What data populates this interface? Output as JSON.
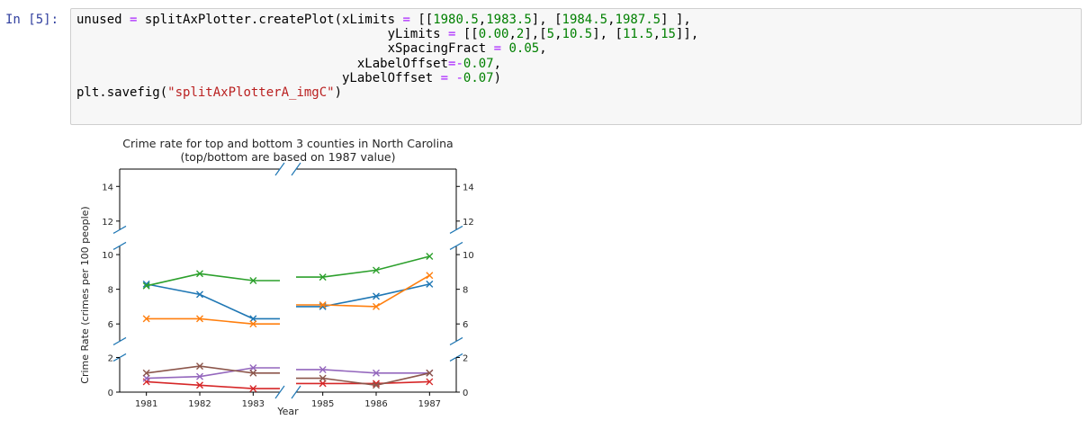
{
  "cell": {
    "prompt": "In [5]:",
    "code_lines": [
      [
        {
          "t": "unused "
        },
        {
          "t": "=",
          "c": "op"
        },
        {
          "t": " splitAxPlotter.createPlot(xLimits "
        },
        {
          "t": "=",
          "c": "op"
        },
        {
          "t": " [["
        },
        {
          "t": "1980.5",
          "c": "num"
        },
        {
          "t": ","
        },
        {
          "t": "1983.5",
          "c": "num"
        },
        {
          "t": "], ["
        },
        {
          "t": "1984.5",
          "c": "num"
        },
        {
          "t": ","
        },
        {
          "t": "1987.5",
          "c": "num"
        },
        {
          "t": "] ],"
        }
      ],
      [
        {
          "t": "                                         yLimits "
        },
        {
          "t": "=",
          "c": "op"
        },
        {
          "t": " [["
        },
        {
          "t": "0.00",
          "c": "num"
        },
        {
          "t": ","
        },
        {
          "t": "2",
          "c": "num"
        },
        {
          "t": "],["
        },
        {
          "t": "5",
          "c": "num"
        },
        {
          "t": ","
        },
        {
          "t": "10.5",
          "c": "num"
        },
        {
          "t": "], ["
        },
        {
          "t": "11.5",
          "c": "num"
        },
        {
          "t": ","
        },
        {
          "t": "15",
          "c": "num"
        },
        {
          "t": "]],"
        }
      ],
      [
        {
          "t": "                                         xSpacingFract "
        },
        {
          "t": "=",
          "c": "op"
        },
        {
          "t": " "
        },
        {
          "t": "0.05",
          "c": "num"
        },
        {
          "t": ","
        }
      ],
      [
        {
          "t": "                                     xLabelOffset"
        },
        {
          "t": "=-",
          "c": "op"
        },
        {
          "t": "0.07",
          "c": "num"
        },
        {
          "t": ","
        }
      ],
      [
        {
          "t": "                                   yLabelOffset "
        },
        {
          "t": "=",
          "c": "op"
        },
        {
          "t": " "
        },
        {
          "t": "-",
          "c": "op"
        },
        {
          "t": "0.07",
          "c": "num"
        },
        {
          "t": ")"
        }
      ],
      [
        {
          "t": "plt.savefig("
        },
        {
          "t": "\"splitAxPlotterA_imgC\"",
          "c": "str"
        },
        {
          "t": ")"
        }
      ]
    ]
  },
  "chart_data": {
    "type": "line",
    "title": "Crime rate for top and bottom 3 counties in North Carolina",
    "subtitle": "(top/bottom are based on 1987 value)",
    "xlabel": "Year",
    "ylabel": "Crime Rate (crimes per 100 people)",
    "x": [
      1981,
      1982,
      1983,
      1985,
      1986,
      1987
    ],
    "x_segments": [
      [
        1980.5,
        1983.5
      ],
      [
        1984.5,
        1987.5
      ]
    ],
    "y_segments": [
      [
        0,
        2
      ],
      [
        5,
        10.5
      ],
      [
        11.5,
        15
      ]
    ],
    "x_ticks": [
      "1981",
      "1982",
      "1983",
      "1985",
      "1986",
      "1987"
    ],
    "y_ticks": [
      "0",
      "2",
      "6",
      "8",
      "10",
      "12",
      "14"
    ],
    "series": [
      {
        "color": "#1f77b4",
        "values": [
          8.3,
          7.7,
          6.3,
          7.0,
          7.6,
          8.3
        ]
      },
      {
        "color": "#ff7f0e",
        "values": [
          6.3,
          6.3,
          6.0,
          7.1,
          7.0,
          8.8
        ]
      },
      {
        "color": "#2ca02c",
        "values": [
          8.2,
          8.9,
          8.5,
          8.7,
          9.1,
          9.9
        ]
      },
      {
        "color": "#d62728",
        "values": [
          0.6,
          0.4,
          0.2,
          0.5,
          0.5,
          0.6
        ]
      },
      {
        "color": "#9467bd",
        "values": [
          0.8,
          0.9,
          1.4,
          1.3,
          1.1,
          1.1
        ]
      },
      {
        "color": "#8c564b",
        "values": [
          1.1,
          1.5,
          1.1,
          0.8,
          0.4,
          1.1
        ]
      }
    ]
  }
}
